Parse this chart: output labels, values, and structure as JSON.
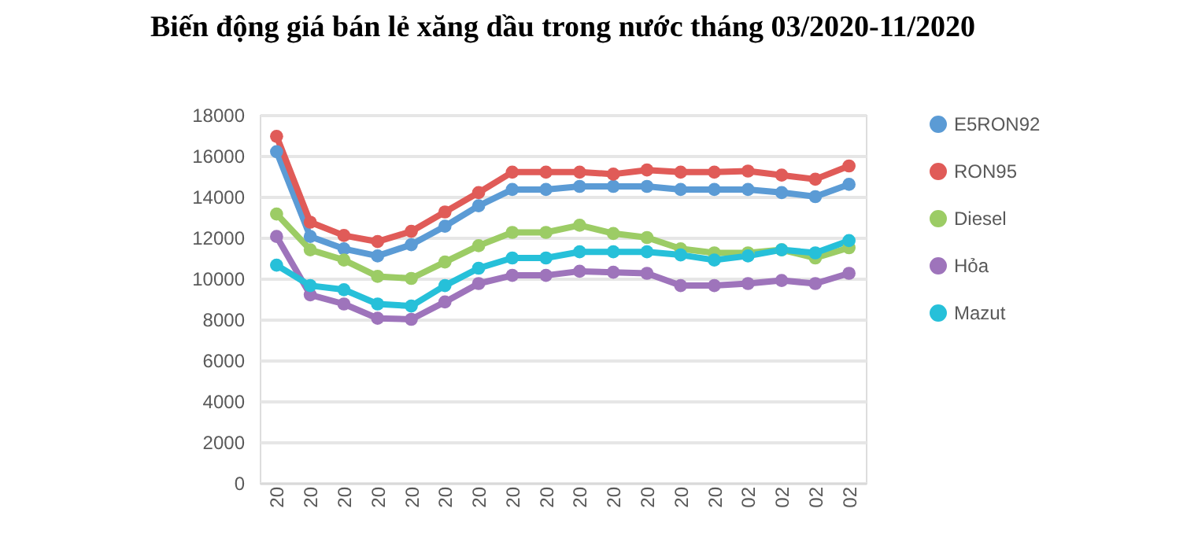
{
  "chart_data": {
    "type": "line",
    "title": "Biến động giá bán lẻ xăng dầu trong nước tháng 03/2020-11/2020",
    "categories": [
      "20",
      "20",
      "20",
      "20",
      "20",
      "20",
      "20",
      "20",
      "20",
      "20",
      "20",
      "20",
      "20",
      "20",
      "02",
      "02",
      "02",
      "02"
    ],
    "series": [
      {
        "name": "E5RON92",
        "color": "#5b9bd5",
        "values": [
          16200,
          12050,
          11450,
          11100,
          11650,
          12550,
          13550,
          14350,
          14350,
          14500,
          14500,
          14500,
          14350,
          14350,
          14350,
          14200,
          14000,
          14600
        ]
      },
      {
        "name": "RON95",
        "color": "#e05b58",
        "values": [
          16950,
          12750,
          12100,
          11800,
          12300,
          13250,
          14200,
          15200,
          15200,
          15200,
          15100,
          15300,
          15200,
          15200,
          15250,
          15050,
          14850,
          15500
        ]
      },
      {
        "name": "Diesel",
        "color": "#9ccc65",
        "values": [
          13150,
          11400,
          10900,
          10100,
          10000,
          10800,
          11600,
          12250,
          12250,
          12600,
          12200,
          12000,
          11450,
          11250,
          11250,
          11400,
          11000,
          11500
        ]
      },
      {
        "name": "Hỏa",
        "color": "#9e74bb",
        "values": [
          12050,
          9200,
          8750,
          8050,
          8000,
          8850,
          9750,
          10150,
          10150,
          10350,
          10300,
          10250,
          9650,
          9650,
          9750,
          9900,
          9750,
          10250
        ]
      },
      {
        "name": "Mazut",
        "color": "#26c0d9",
        "values": [
          10650,
          9650,
          9450,
          8750,
          8650,
          9650,
          10500,
          11000,
          11000,
          11300,
          11300,
          11300,
          11150,
          10900,
          11100,
          11400,
          11250,
          11850
        ]
      }
    ],
    "ylim": [
      0,
      18000
    ],
    "yticks": [
      0,
      2000,
      4000,
      6000,
      8000,
      10000,
      12000,
      14000,
      16000,
      18000
    ],
    "grid": "y",
    "legend": "right",
    "marker": "circle",
    "line_style": "solid"
  }
}
